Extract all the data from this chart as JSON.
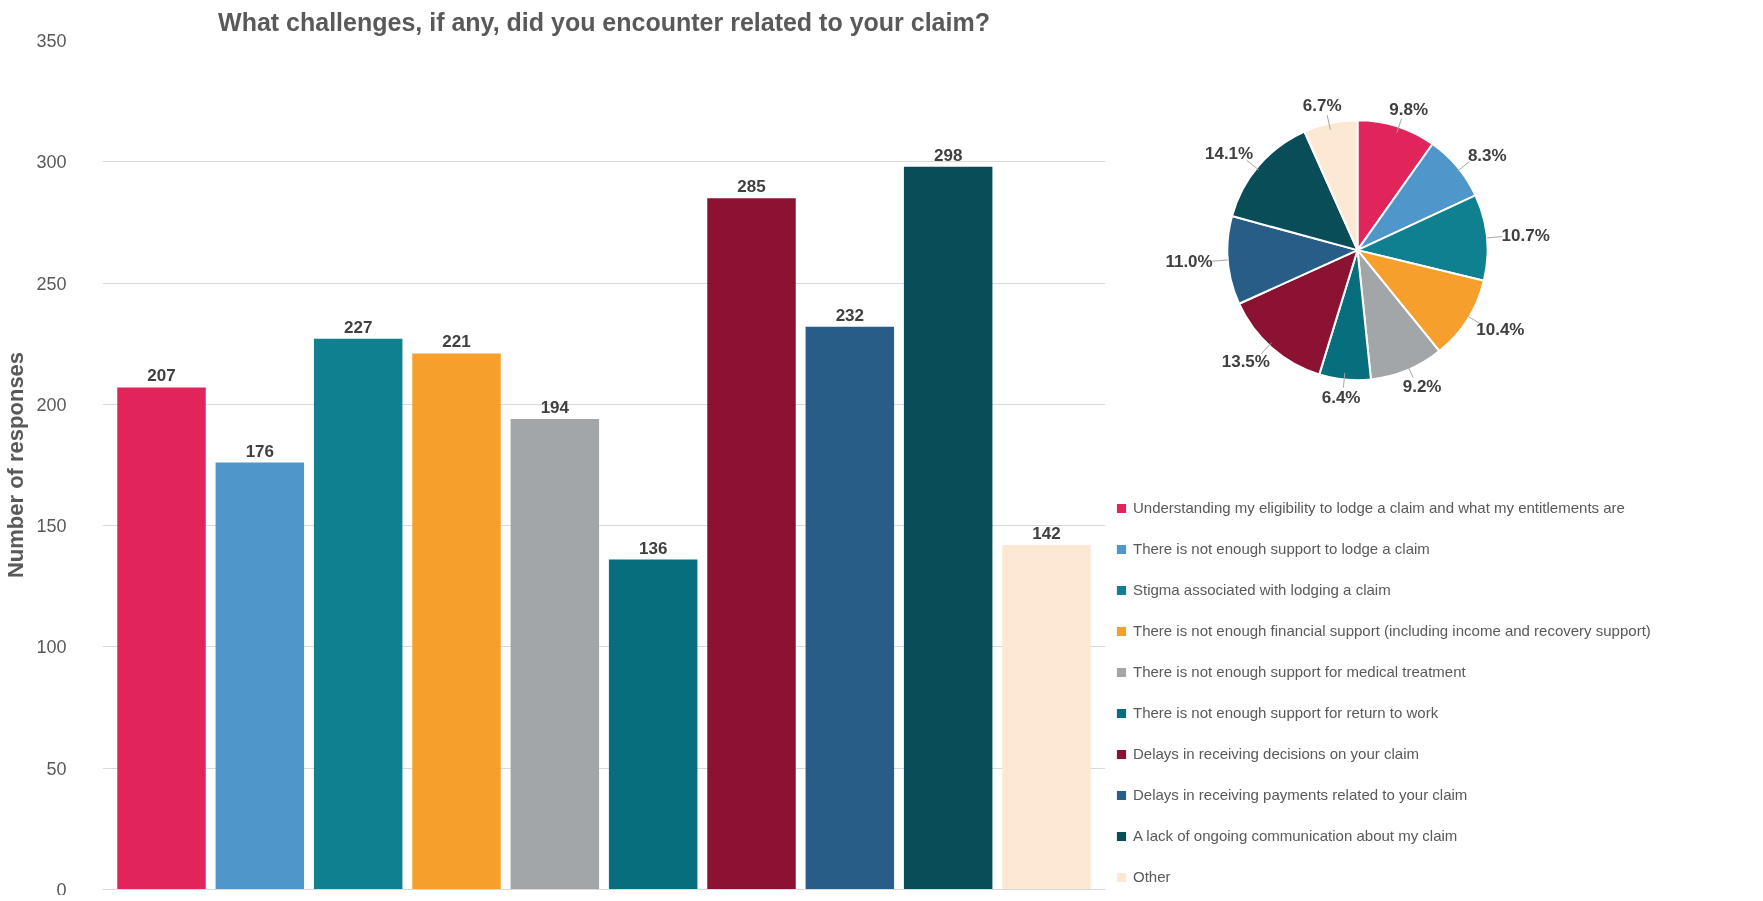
{
  "chart_data": [
    {
      "type": "bar",
      "title": "What challenges, if any, did you encounter related to your claim?",
      "ylabel": "Number of responses",
      "categories": [
        null,
        null,
        null,
        null,
        null,
        null,
        null,
        null,
        null,
        null
      ],
      "values": [
        207,
        176,
        227,
        221,
        194,
        136,
        285,
        232,
        298,
        142
      ],
      "colors": [
        "#e1255a",
        "#4f97cb",
        "#0f8090",
        "#f69f2c",
        "#a3a6a9",
        "#066e7c",
        "#8b1232",
        "#275d86",
        "#094d58",
        "#fde9d3"
      ],
      "ylim": [
        0,
        350
      ],
      "yticks": [
        0,
        50,
        100,
        150,
        200,
        250,
        300,
        350
      ],
      "grid": "y",
      "data_labels": true,
      "tick_labels": "y"
    },
    {
      "type": "pie",
      "categories": [
        "Understanding my eligibility to lodge a claim and what my entitlements are",
        "There is not enough support to lodge a claim",
        "Stigma associated with lodging a claim",
        "There is not enough financial support (including income and recovery support)",
        "There is not enough support for medical treatment",
        "There is not enough support for return to work",
        "Delays in receiving decisions on your claim",
        "Delays in receiving payments related to your claim",
        "A lack of ongoing communication about my claim",
        "Other"
      ],
      "values": [
        9.8,
        8.3,
        10.7,
        10.4,
        9.2,
        6.4,
        13.5,
        11.0,
        14.1,
        6.7
      ],
      "value_labels": [
        "9.8%",
        "8.3%",
        "10.7%",
        "10.4%",
        "9.2%",
        "6.4%",
        "13.5%",
        "11.0%",
        "14.1%",
        "6.7%"
      ],
      "colors": [
        "#e1255a",
        "#4f97cb",
        "#0f8090",
        "#f69f2c",
        "#a3a6a9",
        "#066e7c",
        "#8b1232",
        "#275d86",
        "#094d58",
        "#fde9d3"
      ],
      "legend": "bottom"
    }
  ]
}
